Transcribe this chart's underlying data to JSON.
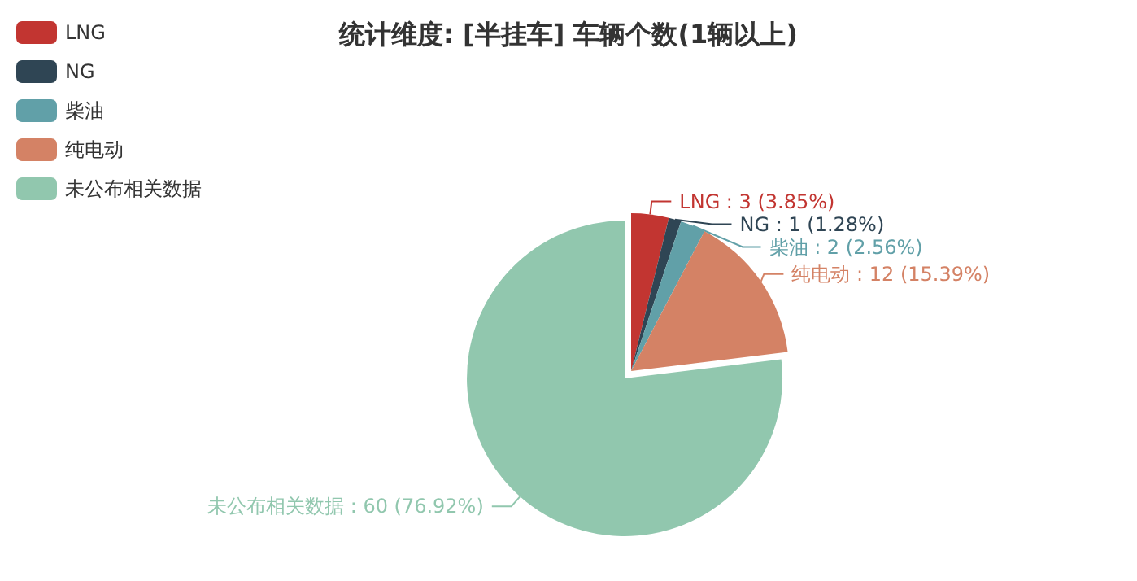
{
  "chart_data": {
    "type": "pie",
    "title": "统计维度: [半挂车] 车辆个数(1辆以上)",
    "categories": [
      "LNG",
      "NG",
      "柴油",
      "纯电动",
      "未公布相关数据"
    ],
    "values": [
      3,
      1,
      2,
      12,
      60
    ],
    "colors": [
      "#c23531",
      "#2f4554",
      "#61a0a8",
      "#d48265",
      "#91c7ae"
    ],
    "value_labels": [
      "LNG : 3 (3.85%)",
      "NG : 1 (1.28%)",
      "柴油 : 2 (2.56%)",
      "纯电动 : 12 (15.39%)",
      "未公布相关数据 : 60 (76.92%)"
    ],
    "legend": "top left"
  }
}
